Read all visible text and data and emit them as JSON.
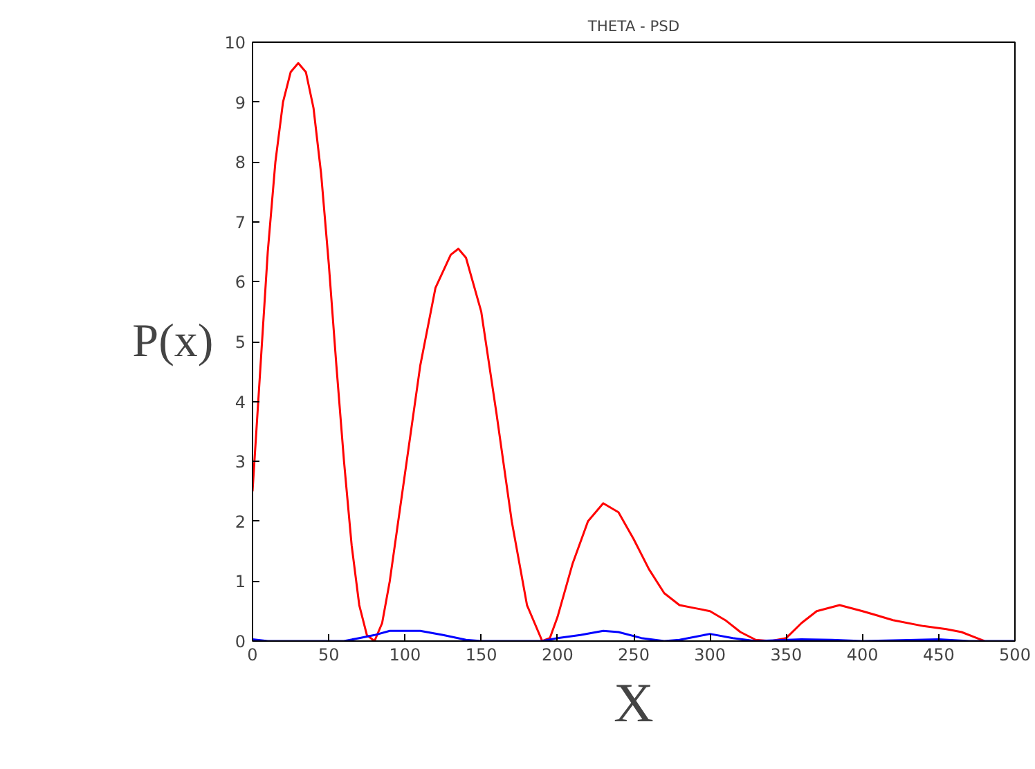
{
  "chart_data": {
    "type": "line",
    "title": "THETA - PSD",
    "xlabel": "X",
    "ylabel": "P(x)",
    "xlim": [
      0,
      500
    ],
    "ylim": [
      0,
      10
    ],
    "xticks": [
      0,
      50,
      100,
      150,
      200,
      250,
      300,
      350,
      400,
      450,
      500
    ],
    "yticks": [
      0,
      1,
      2,
      3,
      4,
      5,
      6,
      7,
      8,
      9,
      10
    ],
    "grid": false,
    "marker": "none",
    "line_style": "solid",
    "series": [
      {
        "color": "#ff0000",
        "x": [
          0,
          5,
          10,
          15,
          20,
          25,
          30,
          35,
          40,
          45,
          50,
          55,
          60,
          65,
          70,
          75,
          80,
          85,
          90,
          100,
          110,
          120,
          130,
          135,
          140,
          150,
          160,
          170,
          180,
          190,
          195,
          200,
          210,
          220,
          230,
          240,
          250,
          260,
          270,
          280,
          290,
          300,
          310,
          320,
          330,
          340,
          350,
          360,
          370,
          385,
          400,
          420,
          440,
          455,
          465,
          475,
          480
        ],
        "values": [
          2.5,
          4.5,
          6.5,
          8.0,
          9.0,
          9.5,
          9.65,
          9.5,
          8.9,
          7.8,
          6.3,
          4.6,
          3.0,
          1.6,
          0.6,
          0.1,
          0,
          0.3,
          1.0,
          2.8,
          4.6,
          5.9,
          6.45,
          6.55,
          6.4,
          5.5,
          3.8,
          2.0,
          0.6,
          0,
          0.05,
          0.4,
          1.3,
          2.0,
          2.3,
          2.15,
          1.7,
          1.2,
          0.8,
          0.6,
          0.55,
          0.5,
          0.35,
          0.15,
          0.02,
          0,
          0.05,
          0.3,
          0.5,
          0.6,
          0.5,
          0.35,
          0.25,
          0.2,
          0.15,
          0.05,
          0
        ]
      },
      {
        "color": "#0000ff",
        "x": [
          0,
          10,
          60,
          70,
          80,
          90,
          110,
          125,
          140,
          150,
          190,
          200,
          215,
          230,
          240,
          255,
          270,
          280,
          300,
          315,
          330,
          360,
          380,
          400,
          450,
          470,
          500
        ],
        "values": [
          0.03,
          0,
          0,
          0.05,
          0.1,
          0.17,
          0.17,
          0.1,
          0.02,
          0,
          0,
          0.05,
          0.1,
          0.17,
          0.15,
          0.05,
          0,
          0.02,
          0.12,
          0.05,
          0,
          0.03,
          0.02,
          0,
          0.03,
          0,
          0
        ]
      }
    ]
  }
}
